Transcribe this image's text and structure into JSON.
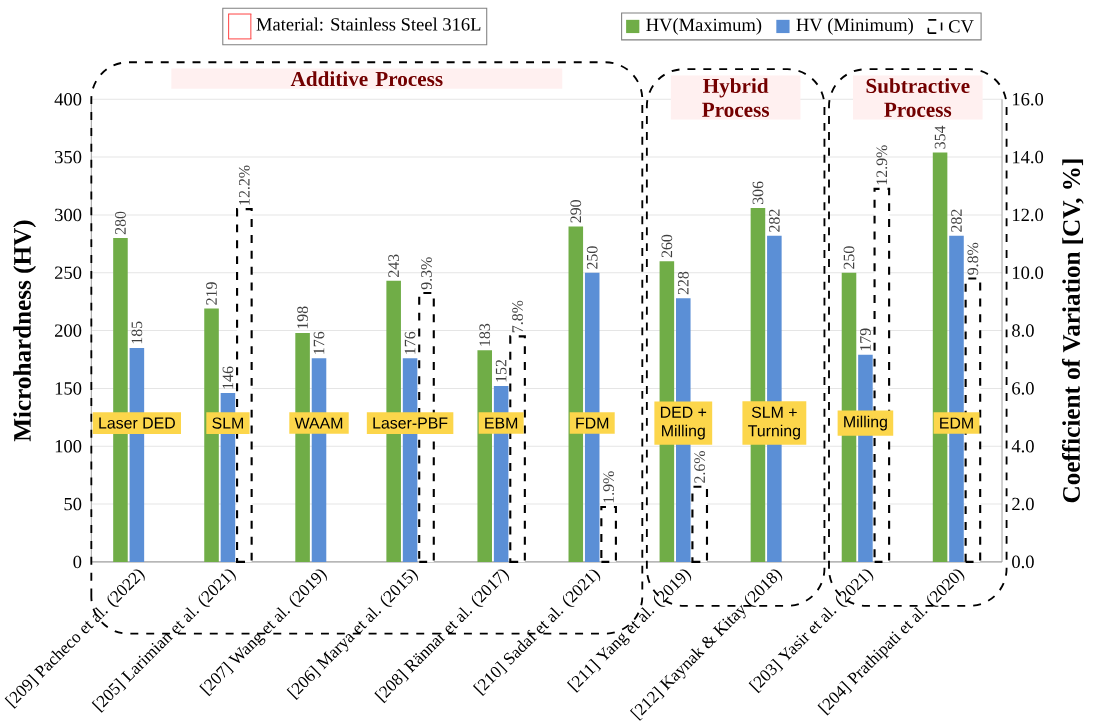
{
  "chart_data": {
    "type": "bar",
    "ylabel": "Microhardness (HV)",
    "y2label": "Coefficient of Variation [CV, %]",
    "categories": [
      "[209] Pacheco et al. (2022)",
      "[205] Larimian et al. (2021)",
      "[207] Wang et al. (2019)",
      "[206] Marya et al. (2015)",
      "[208] Rännar et al. (2017)",
      "[210] Sadaf et al. (2021)",
      "[211] Yang et al. (2019)",
      "[212] Kaynak & Kitay (2018)",
      "[203] Yasir et al. (2021)",
      "[204] Prathipati et al. (2020)"
    ],
    "series": [
      {
        "name": "HV(Maximum)",
        "color": "#70ad47",
        "values": [
          280,
          219,
          198,
          243,
          183,
          290,
          260,
          306,
          250,
          354
        ],
        "value_labels": [
          "280",
          "219",
          "198",
          "243",
          "183",
          "290",
          "260",
          "306",
          "250",
          "354"
        ]
      },
      {
        "name": "HV (Minimum)",
        "color": "#5b8fd6",
        "values": [
          185,
          146,
          176,
          176,
          152,
          250,
          228,
          282,
          179,
          282
        ],
        "value_labels": [
          "185",
          "146",
          "176",
          "176",
          "152",
          "250",
          "228",
          "282",
          "179",
          "282"
        ]
      },
      {
        "name": "CV",
        "color": "#000000",
        "axis": "y2",
        "line_style": "dashed",
        "values": [
          null,
          12.2,
          null,
          9.3,
          7.8,
          1.9,
          2.6,
          null,
          12.9,
          9.8
        ],
        "value_labels": [
          null,
          "12.2%",
          null,
          "9.3%",
          "7.8%",
          "1.9%",
          "2.6%",
          null,
          "12.9%",
          "9.8%"
        ]
      }
    ],
    "ylim": [
      0,
      400
    ],
    "yticks": [
      0,
      50,
      100,
      150,
      200,
      250,
      300,
      350,
      400
    ],
    "y2lim": [
      0,
      16
    ],
    "y2ticks": [
      {
        "value": 0,
        "label": "0.0"
      },
      {
        "value": 2,
        "label": "2.0"
      },
      {
        "value": 4,
        "label": "4.0"
      },
      {
        "value": 6,
        "label": "6.0"
      },
      {
        "value": 8,
        "label": "8.0"
      },
      {
        "value": 10,
        "label": "10.0"
      },
      {
        "value": 12,
        "label": "12.0"
      },
      {
        "value": 14,
        "label": "14.0"
      },
      {
        "value": 16,
        "label": "16.0"
      }
    ],
    "grid": "y",
    "legend": "top",
    "annotations": [
      "Material: Stainless Steel 316L",
      "Additive Process",
      "Hybrid Process",
      "Subtractive Process",
      {
        "text": "Laser DED",
        "x": "[209] Pacheco et al. (2022)"
      },
      {
        "text": "SLM",
        "x": "[205] Larimian et al. (2021)"
      },
      {
        "text": "WAAM",
        "x": "[207] Wang et al. (2019)"
      },
      {
        "text": "Laser-PBF",
        "x": "[206] Marya et al. (2015)"
      },
      {
        "text": "EBM",
        "x": "[208] Rännar et al. (2017)"
      },
      {
        "text": "FDM",
        "x": "[210] Sadaf et al. (2021)"
      },
      {
        "text": "DED + Milling",
        "x": "[211] Yang et al. (2019)"
      },
      {
        "text": "SLM + Turning",
        "x": "[212] Kaynak & Kitay (2018)"
      },
      {
        "text": "Milling",
        "x": "[203] Yasir et al. (2021)"
      },
      {
        "text": "EDM",
        "x": "[204] Prathipati et al. (2020)"
      }
    ]
  }
}
